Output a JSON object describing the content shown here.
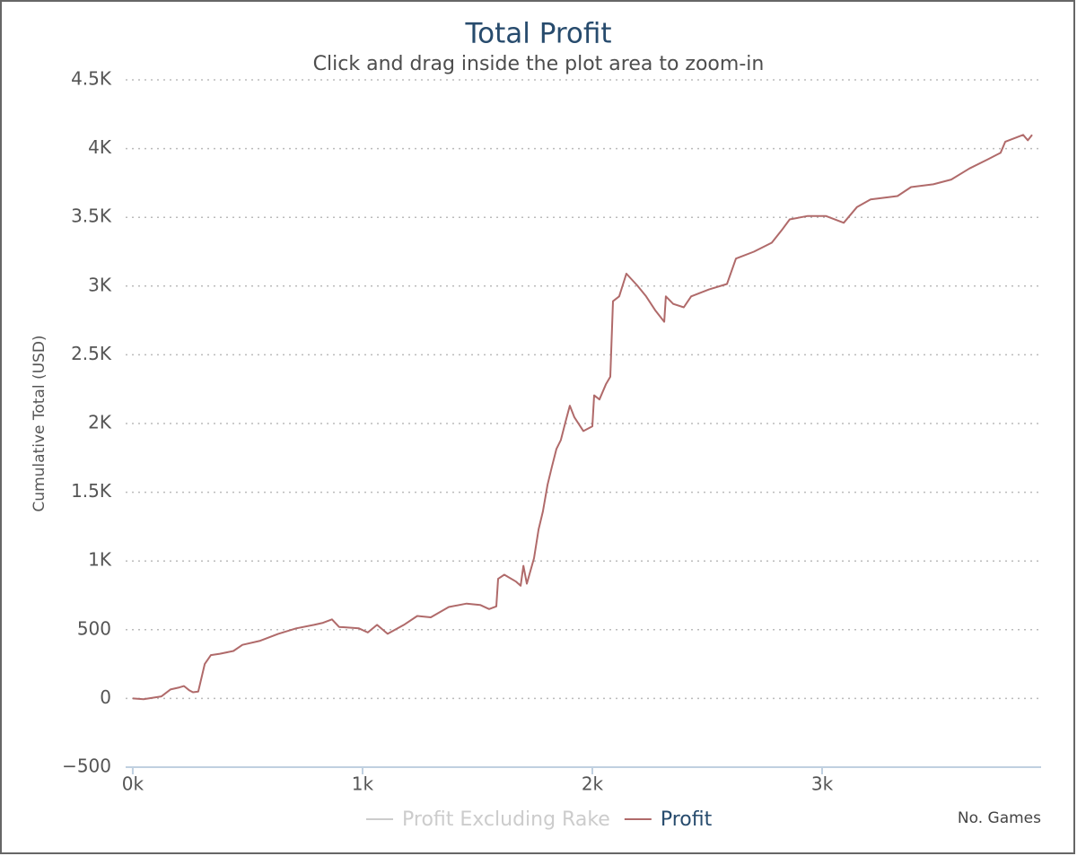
{
  "chart_data": {
    "type": "line",
    "title": "Total Profit",
    "subtitle": "Click and drag inside the plot area to zoom-in",
    "y_label": "Cumulative Total (USD)",
    "x_label": "No. Games",
    "x": [
      0,
      47,
      125,
      164,
      203,
      223,
      245,
      262,
      285,
      313,
      340,
      379,
      438,
      477,
      555,
      633,
      711,
      789,
      828,
      867,
      898,
      984,
      1023,
      1063,
      1109,
      1180,
      1238,
      1297,
      1375,
      1453,
      1512,
      1551,
      1582,
      1590,
      1617,
      1668,
      1688,
      1700,
      1715,
      1746,
      1766,
      1785,
      1805,
      1824,
      1844,
      1863,
      1883,
      1902,
      1922,
      1961,
      2000,
      2008,
      2031,
      2059,
      2078,
      2090,
      2117,
      2148,
      2195,
      2234,
      2273,
      2313,
      2320,
      2352,
      2398,
      2430,
      2508,
      2586,
      2625,
      2703,
      2781,
      2828,
      2859,
      2938,
      3016,
      3094,
      3152,
      3211,
      3328,
      3387,
      3484,
      3562,
      3641,
      3719,
      3777,
      3797,
      3875,
      3895,
      3914
    ],
    "series": [
      {
        "name": "Profit Excluding Rake",
        "visible": false
      },
      {
        "name": "Profit",
        "color": "#b06a6a",
        "visible": true,
        "values": [
          0,
          -5,
          15,
          65,
          80,
          90,
          60,
          45,
          50,
          250,
          315,
          325,
          345,
          390,
          420,
          470,
          510,
          535,
          550,
          575,
          520,
          510,
          480,
          535,
          470,
          535,
          600,
          590,
          665,
          690,
          680,
          650,
          670,
          870,
          900,
          850,
          820,
          965,
          835,
          1020,
          1230,
          1360,
          1555,
          1685,
          1815,
          1880,
          2010,
          2130,
          2045,
          1945,
          1980,
          2205,
          2175,
          2285,
          2340,
          2890,
          2925,
          3090,
          3005,
          2925,
          2825,
          2740,
          2925,
          2870,
          2845,
          2925,
          2975,
          3015,
          3200,
          3250,
          3315,
          3415,
          3485,
          3510,
          3510,
          3460,
          3575,
          3630,
          3655,
          3720,
          3740,
          3775,
          3855,
          3920,
          3970,
          4050,
          4100,
          4060,
          4100
        ]
      }
    ],
    "xlim": [
      -31,
      3953
    ],
    "xticks": [
      {
        "value": 0,
        "label": "0k"
      },
      {
        "value": 1000,
        "label": "1k"
      },
      {
        "value": 2000,
        "label": "2k"
      },
      {
        "value": 3000,
        "label": "3k"
      }
    ],
    "ylim": [
      -500,
      4500
    ],
    "yticks": [
      {
        "value": -500,
        "label": "−500"
      },
      0,
      500,
      {
        "value": 1000,
        "label": "1K"
      },
      {
        "value": 1500,
        "label": "1.5K"
      },
      {
        "value": 2000,
        "label": "2K"
      },
      {
        "value": 2500,
        "label": "2.5K"
      },
      {
        "value": 3000,
        "label": "3K"
      },
      {
        "value": 3500,
        "label": "3.5K"
      },
      {
        "value": 4000,
        "label": "4K"
      },
      {
        "value": 4500,
        "label": "4.5K"
      }
    ],
    "grid": true
  }
}
